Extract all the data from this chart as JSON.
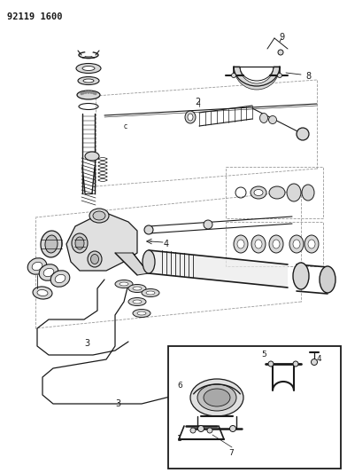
{
  "title_code": "92119 1600",
  "bg_color": "#ffffff",
  "fig_width": 3.92,
  "fig_height": 5.33,
  "dpi": 100,
  "black": "#1a1a1a",
  "gray_light": "#d8d8d8",
  "gray_mid": "#b0b0b0",
  "gray_dark": "#888888",
  "dash_color": "#999999"
}
